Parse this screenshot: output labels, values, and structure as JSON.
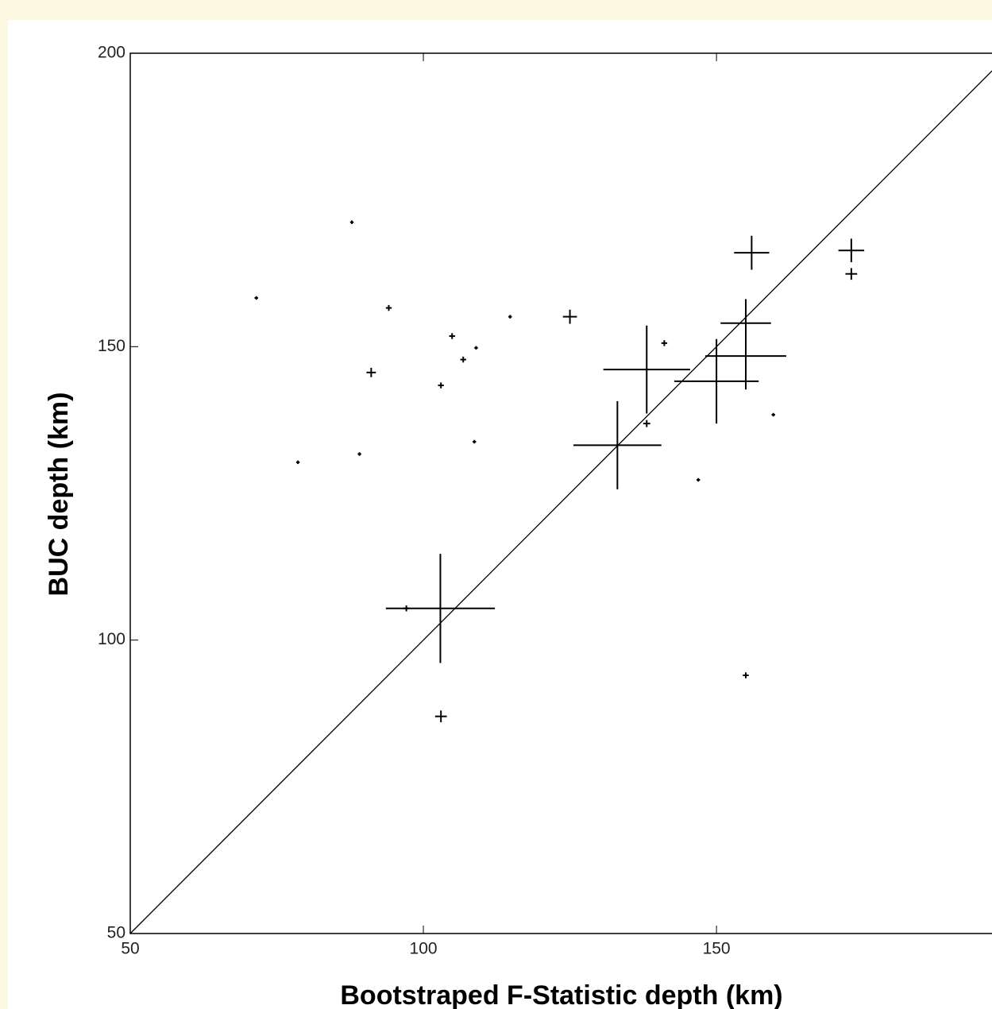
{
  "chart_data": {
    "type": "scatter",
    "x_label": "Bootstraped F-Statistic depth (km)",
    "y_label": "BUC depth (km)",
    "xlim": [
      50,
      197
    ],
    "ylim": [
      50,
      200
    ],
    "xticks": [
      50,
      100,
      150
    ],
    "yticks": [
      50,
      100,
      150,
      200
    ],
    "diagonal": true,
    "color": "#000000",
    "x": [
      102.9,
      133.1,
      138.1,
      150.0,
      155.0,
      155.0,
      156.0,
      173.0,
      173.0,
      125.0,
      91.1,
      103.0,
      138.1,
      155.0,
      94.1,
      104.9,
      103.0,
      106.8,
      141.1,
      97.1,
      87.8,
      71.5,
      78.6,
      89.1,
      108.7,
      114.8,
      109.0,
      146.9,
      159.7
    ],
    "y": [
      105.4,
      133.2,
      146.1,
      144.1,
      148.4,
      154.0,
      166.0,
      166.4,
      162.4,
      155.1,
      145.6,
      87.0,
      136.9,
      94.0,
      156.6,
      151.8,
      143.4,
      147.8,
      150.6,
      105.4,
      171.2,
      158.3,
      130.3,
      131.7,
      133.8,
      155.1,
      149.8,
      127.3,
      138.4
    ],
    "xerr": [
      9.3,
      7.5,
      7.4,
      7.2,
      6.9,
      4.3,
      3.0,
      2.2,
      1.0,
      1.2,
      0.8,
      1.0,
      0.6,
      0.5,
      0.5,
      0.5,
      0.5,
      0.5,
      0.5,
      0.5,
      0.3,
      0.3,
      0.3,
      0.3,
      0.3,
      0.3,
      0.3,
      0.3,
      0.3
    ],
    "yerr": [
      9.3,
      7.5,
      7.5,
      7.2,
      5.7,
      4.1,
      2.9,
      2.0,
      1.0,
      1.2,
      0.8,
      1.0,
      0.6,
      0.5,
      0.5,
      0.5,
      0.5,
      0.5,
      0.5,
      0.5,
      0.3,
      0.3,
      0.3,
      0.3,
      0.3,
      0.3,
      0.3,
      0.3,
      0.3
    ]
  }
}
